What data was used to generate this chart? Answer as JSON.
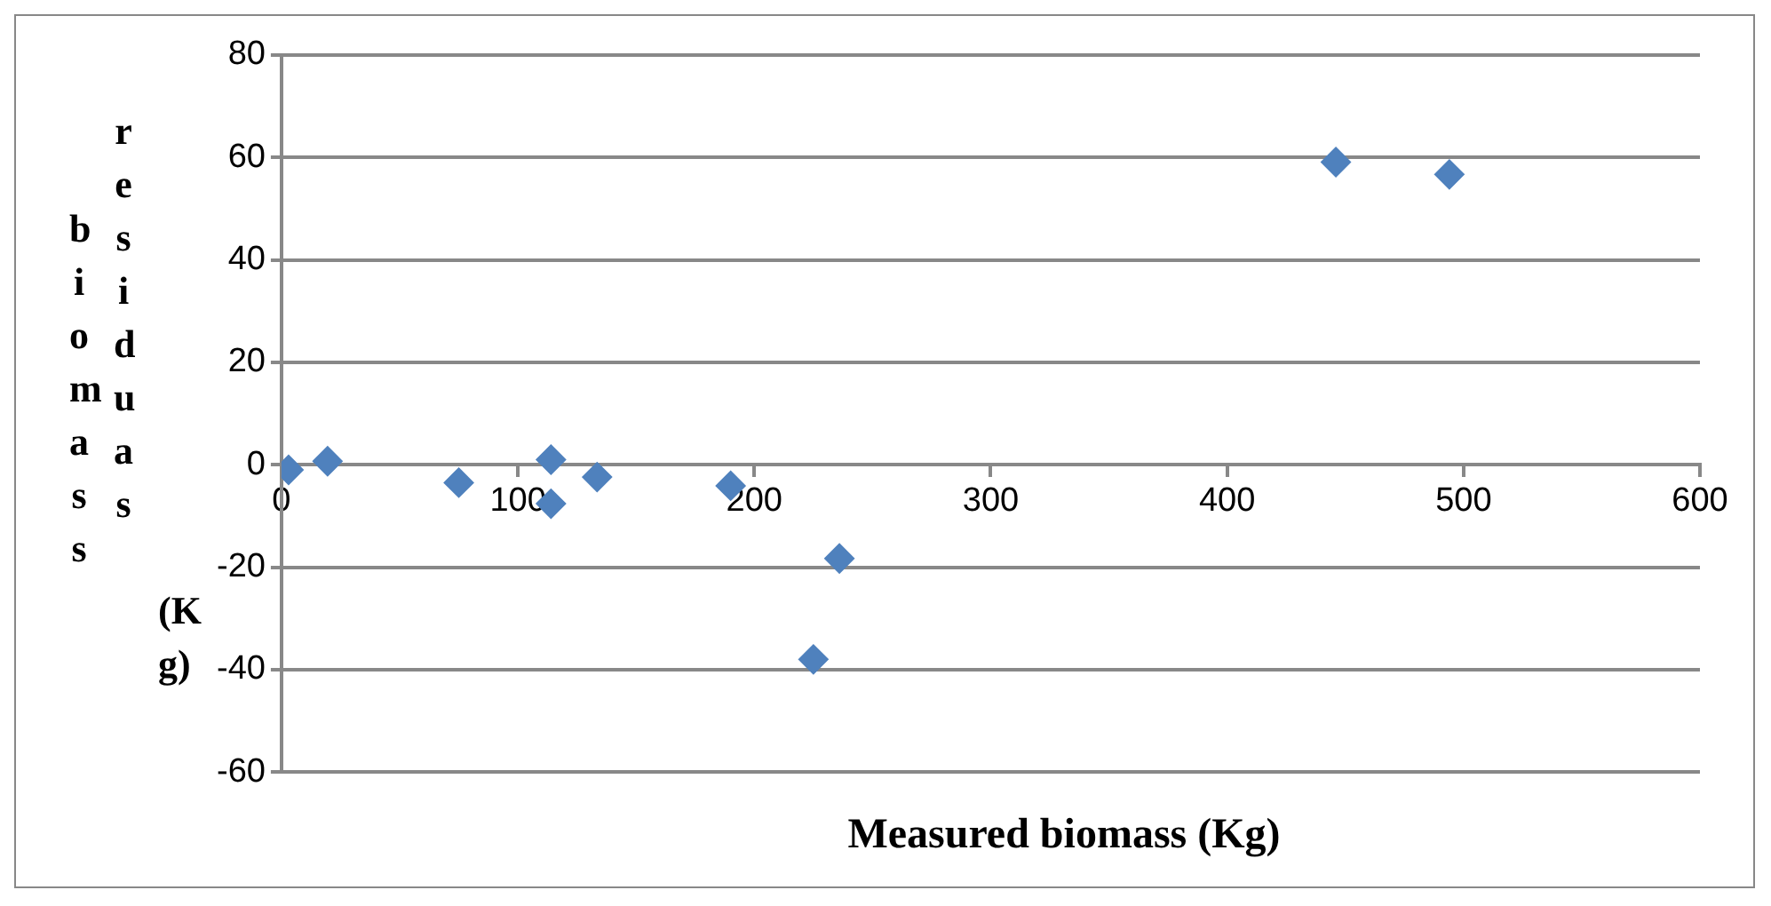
{
  "chart_data": {
    "type": "scatter",
    "xlabel": "Measured biomass (Kg)",
    "ylabel": "biomass residuas (Kg)",
    "marker": "diamond",
    "grid": "y",
    "legend": false,
    "xlim": [
      0,
      600
    ],
    "xticks": [
      0,
      100,
      200,
      300,
      400,
      500,
      600
    ],
    "ylim": [
      -60,
      80
    ],
    "yticks": [
      -60,
      -40,
      -20,
      0,
      20,
      40,
      60,
      80
    ],
    "series": [
      {
        "color": "#4f81bd",
        "x": [
          3,
          19.5,
          75,
          114,
          114,
          133.5,
          190,
          225,
          236,
          446,
          494
        ],
        "values": [
          -1,
          0.7,
          -3.5,
          1,
          -7.6,
          -2.4,
          -4.1,
          -38,
          -18.3,
          59.1,
          56.7
        ]
      }
    ]
  }
}
